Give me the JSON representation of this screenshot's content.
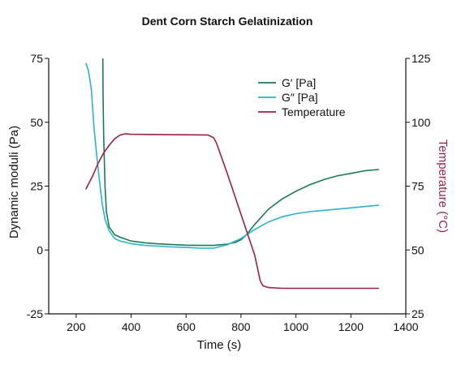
{
  "chart_data": {
    "type": "line",
    "title": "Dent Corn Starch Gelatinization",
    "xlabel": "Time (s)",
    "ylabel_left": "Dynamic moduli (Pa)",
    "ylabel_right": "Temperature (°C)",
    "xlim": [
      100,
      1400
    ],
    "ylim_left": [
      -25,
      75
    ],
    "ylim_right": [
      25,
      125
    ],
    "xticks": [
      200,
      400,
      600,
      800,
      1000,
      1200,
      1400
    ],
    "xtick_labels": [
      "200",
      "400",
      "600",
      "800",
      "1000",
      "1200",
      "1400"
    ],
    "yticks_left": [
      -25,
      0,
      25,
      50,
      75
    ],
    "ytick_labels_left": [
      "-25",
      "0",
      "25",
      "50",
      "75"
    ],
    "yticks_right": [
      25,
      50,
      75,
      100,
      125
    ],
    "ytick_labels_right": [
      "25",
      "50",
      "75",
      "100",
      "125"
    ],
    "grid": false,
    "legend_position": "top-right",
    "series": [
      {
        "name": "G′ [Pa]",
        "axis": "left",
        "color": "#1a7a5a",
        "x": [
          297,
          298,
          300,
          305,
          310,
          320,
          340,
          360,
          400,
          450,
          500,
          550,
          600,
          650,
          700,
          750,
          780,
          800,
          820,
          850,
          900,
          950,
          1000,
          1050,
          1100,
          1150,
          1200,
          1250,
          1300
        ],
        "y": [
          75,
          60,
          45,
          25,
          15,
          9,
          6,
          5,
          3.5,
          2.8,
          2.4,
          2.1,
          1.9,
          1.8,
          1.8,
          2.3,
          3,
          4,
          6,
          10,
          16,
          20,
          23,
          25.5,
          27.5,
          29,
          30,
          31,
          31.5
        ]
      },
      {
        "name": "G″ [Pa]",
        "axis": "left",
        "color": "#2ab3cc",
        "x": [
          236,
          245,
          255,
          265,
          275,
          285,
          295,
          305,
          320,
          340,
          360,
          400,
          450,
          500,
          550,
          600,
          650,
          700,
          750,
          800,
          850,
          900,
          950,
          1000,
          1050,
          1100,
          1150,
          1200,
          1250,
          1300
        ],
        "y": [
          73,
          70,
          63,
          48,
          37,
          27,
          18,
          12,
          7.5,
          4.5,
          3.5,
          2.5,
          1.8,
          1.5,
          1.2,
          1,
          0.7,
          0.7,
          2,
          4.5,
          8,
          11,
          13,
          14.2,
          15,
          15.5,
          16,
          16.5,
          17,
          17.5
        ]
      },
      {
        "name": "Temperature",
        "axis": "right",
        "color": "#a01f4a",
        "x": [
          236,
          260,
          280,
          300,
          320,
          340,
          360,
          380,
          400,
          500,
          600,
          680,
          700,
          710,
          750,
          800,
          850,
          870,
          880,
          900,
          950,
          1000,
          1100,
          1200,
          1300
        ],
        "y": [
          74,
          79,
          84,
          88,
          91,
          93.5,
          95,
          95.5,
          95.3,
          95.2,
          95.1,
          95,
          94,
          92,
          80,
          64,
          48,
          38,
          36,
          35.3,
          35,
          35,
          35,
          35,
          35
        ]
      }
    ]
  }
}
